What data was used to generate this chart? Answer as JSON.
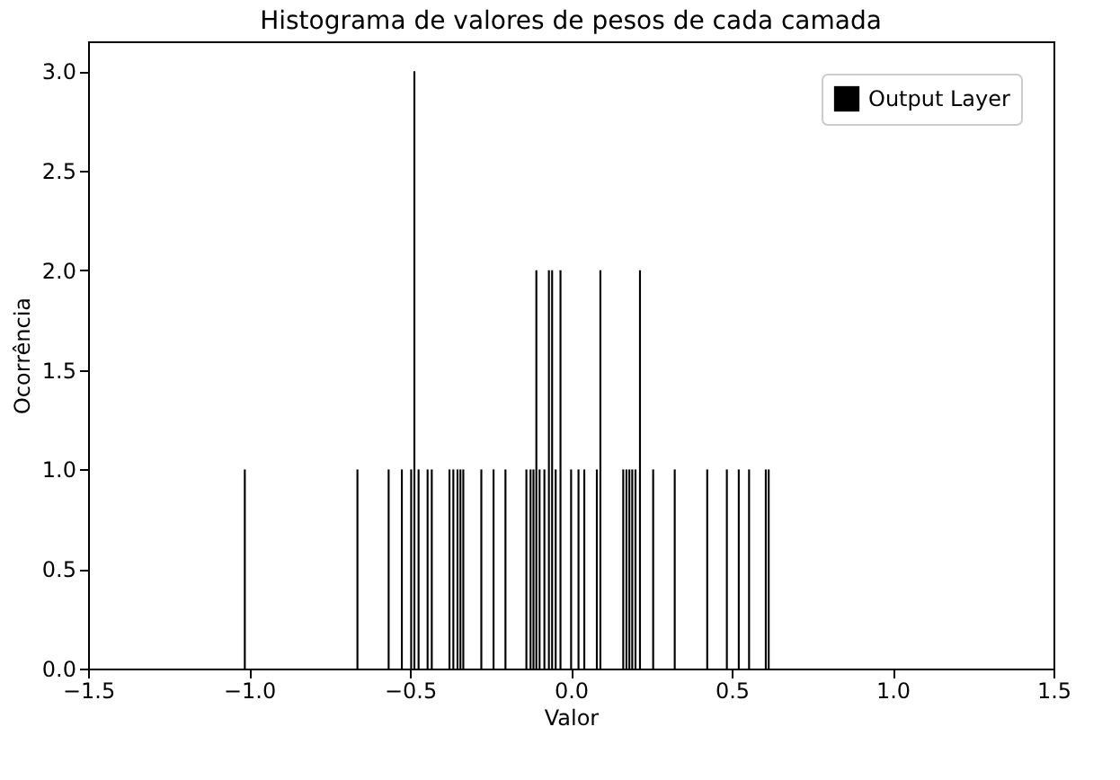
{
  "chart_data": {
    "type": "histogram",
    "title": "Histograma de valores de pesos de cada camada",
    "xlabel": "Valor",
    "ylabel": "Ocorrência",
    "bins": [
      -1.016,
      -1.01,
      -0.666,
      -0.66,
      -0.569,
      -0.563,
      -0.528,
      -0.522,
      -0.499,
      -0.493,
      -0.489,
      -0.483,
      -0.476,
      -0.47,
      -0.448,
      -0.442,
      -0.435,
      -0.429,
      -0.38,
      -0.374,
      -0.368,
      -0.362,
      -0.355,
      -0.349,
      -0.346,
      -0.34,
      -0.337,
      -0.331,
      -0.281,
      -0.275,
      -0.243,
      -0.237,
      -0.206,
      -0.2,
      -0.141,
      -0.135,
      -0.128,
      -0.122,
      -0.119,
      -0.113,
      -0.11,
      -0.104,
      -0.1,
      -0.094,
      -0.085,
      -0.079,
      -0.071,
      -0.065,
      -0.061,
      -0.055,
      -0.05,
      -0.044,
      -0.035,
      -0.029,
      -0.002,
      0.004,
      0.021,
      0.027,
      0.039,
      0.045,
      0.078,
      0.084,
      0.089,
      0.095,
      0.16,
      0.166,
      0.17,
      0.176,
      0.179,
      0.185,
      0.188,
      0.194,
      0.198,
      0.204,
      0.212,
      0.218,
      0.253,
      0.259,
      0.32,
      0.326,
      0.421,
      0.427,
      0.482,
      0.488,
      0.519,
      0.525,
      0.551,
      0.557,
      0.603,
      0.609,
      0.612,
      0.618
    ],
    "series": [
      {
        "name": "Output Layer",
        "color": "#000000",
        "values": [
          1,
          0,
          1,
          0,
          1,
          0,
          1,
          0,
          1,
          0,
          3,
          0,
          1,
          0,
          1,
          0,
          1,
          0,
          1,
          0,
          1,
          0,
          1,
          0,
          1,
          0,
          1,
          0,
          1,
          0,
          1,
          0,
          1,
          0,
          1,
          0,
          1,
          0,
          1,
          0,
          2,
          0,
          1,
          0,
          1,
          0,
          2,
          0,
          2,
          0,
          1,
          0,
          2,
          0,
          1,
          0,
          1,
          0,
          1,
          0,
          1,
          0,
          2,
          0,
          1,
          0,
          1,
          0,
          1,
          0,
          1,
          0,
          1,
          0,
          2,
          0,
          1,
          0,
          1,
          0,
          1,
          0,
          1,
          0,
          1,
          0,
          1,
          0,
          1,
          0,
          1
        ]
      }
    ],
    "xlim": [
      -1.5,
      1.5
    ],
    "xticks": [
      {
        "value": -1.5,
        "label": "−1.5"
      },
      {
        "value": -1.0,
        "label": "−1.0"
      },
      {
        "value": -0.5,
        "label": "−0.5"
      },
      {
        "value": 0,
        "label": "0.0"
      },
      {
        "value": 0.5,
        "label": "0.5"
      },
      {
        "value": 1.0,
        "label": "1.0"
      },
      {
        "value": 1.5,
        "label": "1.5"
      }
    ],
    "ylim": [
      0,
      3.15
    ],
    "yticks": [
      {
        "value": 0,
        "label": "0.0"
      },
      0.5,
      {
        "value": 1.0,
        "label": "1.0"
      },
      1.5,
      {
        "value": 2.0,
        "label": "2.0"
      },
      2.5,
      {
        "value": 3.0,
        "label": "3.0"
      }
    ],
    "grid": false,
    "legend": "top right"
  }
}
